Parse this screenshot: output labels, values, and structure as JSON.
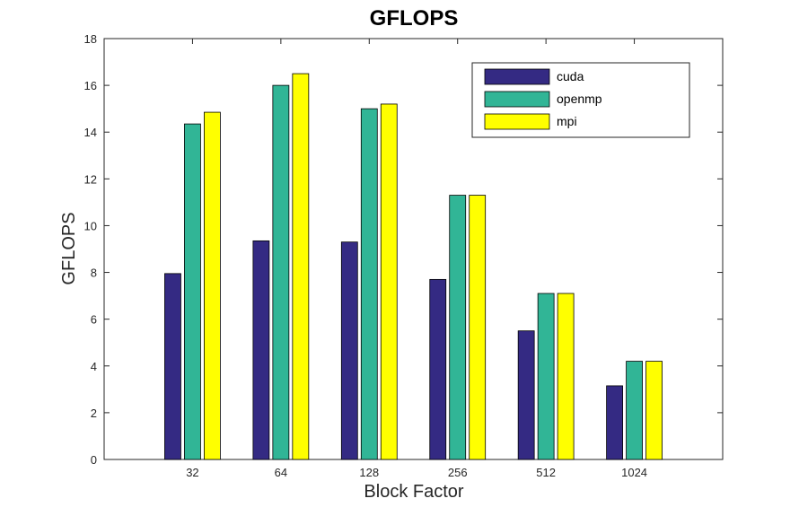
{
  "chart_data": {
    "type": "bar",
    "title": "GFLOPS",
    "xlabel": "Block Factor",
    "ylabel": "GFLOPS",
    "categories": [
      "32",
      "64",
      "128",
      "256",
      "512",
      "1024"
    ],
    "ylim": [
      0,
      18
    ],
    "yticks": [
      0,
      2,
      4,
      6,
      8,
      10,
      12,
      14,
      16,
      18
    ],
    "grid": false,
    "legend_position": "top-right",
    "series": [
      {
        "name": "cuda",
        "color": "#342a83",
        "values": [
          7.95,
          9.35,
          9.3,
          7.7,
          5.5,
          3.15
        ]
      },
      {
        "name": "openmp",
        "color": "#31b596",
        "values": [
          14.35,
          16.0,
          15.0,
          11.3,
          7.1,
          4.2
        ]
      },
      {
        "name": "mpi",
        "color": "#ffff00",
        "values": [
          14.85,
          16.5,
          15.2,
          11.3,
          7.1,
          4.2
        ]
      }
    ]
  }
}
